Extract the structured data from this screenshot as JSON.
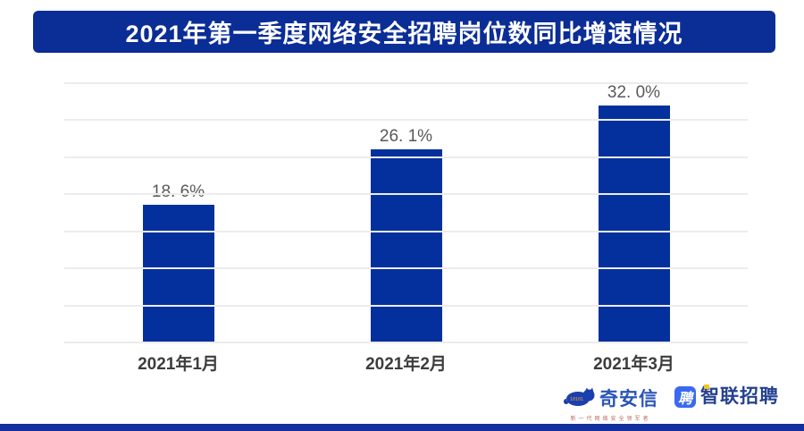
{
  "header": {
    "title": "2021年第一季度网络安全招聘岗位数同比增速情况",
    "bg": "#0b2d96",
    "text_color": "#ffffff"
  },
  "chart_data": {
    "type": "bar",
    "title": "2021年第一季度网络安全招聘岗位数同比增速情况",
    "categories": [
      "2021年1月",
      "2021年2月",
      "2021年3月"
    ],
    "values": [
      18.6,
      26.1,
      32.0
    ],
    "data_labels": [
      "18. 6%",
      "26. 1%",
      "32. 0%"
    ],
    "xlabel": "",
    "ylabel": "",
    "ylim": [
      0,
      35
    ],
    "grid_step": 5,
    "grid": true,
    "legend": false,
    "y_tick_labels_visible": false,
    "bar_color": "#03309c",
    "grid_color": "#ececec",
    "label_color": "#595959",
    "axis_text_color": "#3d3d3d"
  },
  "footer": {
    "qianxin": {
      "name": "奇安信",
      "tagline": "新一代网络安全领军者",
      "text_color": "#2a55b8",
      "tagline_color": "#bb6a5e",
      "mark_color": "#1a3fae",
      "mark_digits": "1010101"
    },
    "zhaopin": {
      "icon_char": "聘",
      "name": "智联招聘",
      "icon_bg": "#3a6af0",
      "text_color": "#25418f",
      "accent_color": "#f5c518"
    }
  },
  "page": {
    "bottom_strip_color": "#12309e"
  }
}
